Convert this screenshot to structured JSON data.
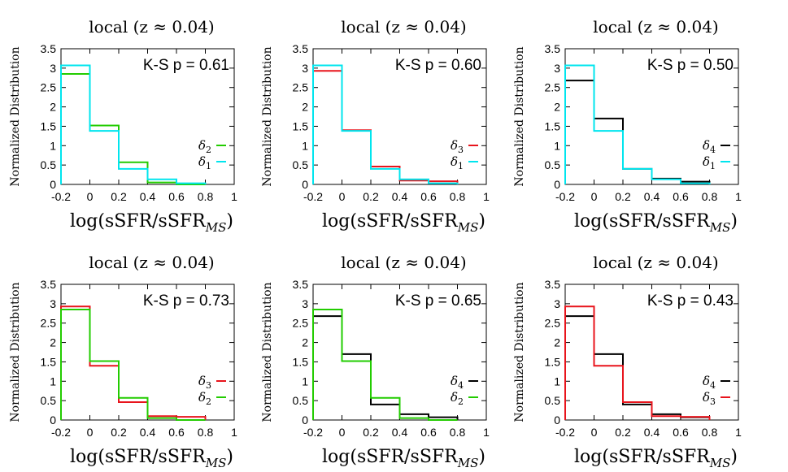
{
  "chart_data": [
    {
      "type": "histogram-step",
      "title": "local (z ≈ 0.04)",
      "ylabel": "Normalized Distribution",
      "xlabel": "log(sSFR/sSFR",
      "xlabel_sub": "MS",
      "xlabel_close": ")",
      "xlim": [
        -0.2,
        1.0
      ],
      "ylim": [
        0,
        3.5
      ],
      "xticks": [
        "-0.2",
        "0",
        "0.2",
        "0.4",
        "0.6",
        "0.8",
        "1"
      ],
      "yticks": [
        "0",
        "0.5",
        "1",
        "1.5",
        "2",
        "2.5",
        "3",
        "3.5"
      ],
      "annotation": "K-S p = 0.61",
      "bin_edges": [
        -0.2,
        0.0,
        0.2,
        0.4,
        0.6,
        0.8
      ],
      "series": [
        {
          "name": "δ",
          "sub": "2",
          "color": "#22cc00",
          "values": [
            2.85,
            1.52,
            0.57,
            0.05,
            0.0
          ]
        },
        {
          "name": "δ",
          "sub": "1",
          "color": "#00e5ee",
          "values": [
            3.07,
            1.38,
            0.4,
            0.13,
            0.03
          ]
        }
      ]
    },
    {
      "type": "histogram-step",
      "title": "local (z ≈ 0.04)",
      "ylabel": "Normalized Distribution",
      "xlabel": "log(sSFR/sSFR",
      "xlabel_sub": "MS",
      "xlabel_close": ")",
      "xlim": [
        -0.2,
        1.0
      ],
      "ylim": [
        0,
        3.5
      ],
      "xticks": [
        "-0.2",
        "0",
        "0.2",
        "0.4",
        "0.6",
        "0.8",
        "1"
      ],
      "yticks": [
        "0",
        "0.5",
        "1",
        "1.5",
        "2",
        "2.5",
        "3",
        "3.5"
      ],
      "annotation": "K-S p = 0.60",
      "bin_edges": [
        -0.2,
        0.0,
        0.2,
        0.4,
        0.6,
        0.8
      ],
      "series": [
        {
          "name": "δ",
          "sub": "3",
          "color": "#e8141c",
          "values": [
            2.93,
            1.4,
            0.46,
            0.1,
            0.08
          ]
        },
        {
          "name": "δ",
          "sub": "1",
          "color": "#00e5ee",
          "values": [
            3.07,
            1.38,
            0.4,
            0.13,
            0.03
          ]
        }
      ]
    },
    {
      "type": "histogram-step",
      "title": "local (z ≈ 0.04)",
      "ylabel": "Normalized Distribution",
      "xlabel": "log(sSFR/sSFR",
      "xlabel_sub": "MS",
      "xlabel_close": ")",
      "xlim": [
        -0.2,
        1.0
      ],
      "ylim": [
        0,
        3.5
      ],
      "xticks": [
        "-0.2",
        "0",
        "0.2",
        "0.4",
        "0.6",
        "0.8",
        "1"
      ],
      "yticks": [
        "0",
        "0.5",
        "1",
        "1.5",
        "2",
        "2.5",
        "3",
        "3.5"
      ],
      "annotation": "K-S p = 0.50",
      "bin_edges": [
        -0.2,
        0.0,
        0.2,
        0.4,
        0.6,
        0.8
      ],
      "series": [
        {
          "name": "δ",
          "sub": "4",
          "color": "#000000",
          "values": [
            2.68,
            1.7,
            0.4,
            0.15,
            0.07
          ]
        },
        {
          "name": "δ",
          "sub": "1",
          "color": "#00e5ee",
          "values": [
            3.07,
            1.38,
            0.4,
            0.13,
            0.03
          ]
        }
      ]
    },
    {
      "type": "histogram-step",
      "title": "local (z ≈ 0.04)",
      "ylabel": "Normalized Distribution",
      "xlabel": "log(sSFR/sSFR",
      "xlabel_sub": "MS",
      "xlabel_close": ")",
      "xlim": [
        -0.2,
        1.0
      ],
      "ylim": [
        0,
        3.5
      ],
      "xticks": [
        "-0.2",
        "0",
        "0.2",
        "0.4",
        "0.6",
        "0.8",
        "1"
      ],
      "yticks": [
        "0",
        "0.5",
        "1",
        "1.5",
        "2",
        "2.5",
        "3",
        "3.5"
      ],
      "annotation": "K-S p = 0.73",
      "bin_edges": [
        -0.2,
        0.0,
        0.2,
        0.4,
        0.6,
        0.8
      ],
      "series": [
        {
          "name": "δ",
          "sub": "3",
          "color": "#e8141c",
          "values": [
            2.93,
            1.4,
            0.46,
            0.1,
            0.08
          ]
        },
        {
          "name": "δ",
          "sub": "2",
          "color": "#22cc00",
          "values": [
            2.85,
            1.52,
            0.57,
            0.05,
            0.0
          ]
        }
      ]
    },
    {
      "type": "histogram-step",
      "title": "local (z ≈ 0.04)",
      "ylabel": "Normalized Distribution",
      "xlabel": "log(sSFR/sSFR",
      "xlabel_sub": "MS",
      "xlabel_close": ")",
      "xlim": [
        -0.2,
        1.0
      ],
      "ylim": [
        0,
        3.5
      ],
      "xticks": [
        "-0.2",
        "0",
        "0.2",
        "0.4",
        "0.6",
        "0.8",
        "1"
      ],
      "yticks": [
        "0",
        "0.5",
        "1",
        "1.5",
        "2",
        "2.5",
        "3",
        "3.5"
      ],
      "annotation": "K-S p = 0.65",
      "bin_edges": [
        -0.2,
        0.0,
        0.2,
        0.4,
        0.6,
        0.8
      ],
      "series": [
        {
          "name": "δ",
          "sub": "4",
          "color": "#000000",
          "values": [
            2.68,
            1.7,
            0.4,
            0.15,
            0.07
          ]
        },
        {
          "name": "δ",
          "sub": "2",
          "color": "#22cc00",
          "values": [
            2.85,
            1.52,
            0.57,
            0.05,
            0.0
          ]
        }
      ]
    },
    {
      "type": "histogram-step",
      "title": "local (z ≈ 0.04)",
      "ylabel": "Normalized Distribution",
      "xlabel": "log(sSFR/sSFR",
      "xlabel_sub": "MS",
      "xlabel_close": ")",
      "xlim": [
        -0.2,
        1.0
      ],
      "ylim": [
        0,
        3.5
      ],
      "xticks": [
        "-0.2",
        "0",
        "0.2",
        "0.4",
        "0.6",
        "0.8",
        "1"
      ],
      "yticks": [
        "0",
        "0.5",
        "1",
        "1.5",
        "2",
        "2.5",
        "3",
        "3.5"
      ],
      "annotation": "K-S p = 0.43",
      "bin_edges": [
        -0.2,
        0.0,
        0.2,
        0.4,
        0.6,
        0.8
      ],
      "series": [
        {
          "name": "δ",
          "sub": "4",
          "color": "#000000",
          "values": [
            2.68,
            1.7,
            0.4,
            0.15,
            0.07
          ]
        },
        {
          "name": "δ",
          "sub": "3",
          "color": "#e8141c",
          "values": [
            2.93,
            1.4,
            0.46,
            0.1,
            0.08
          ]
        }
      ]
    }
  ]
}
